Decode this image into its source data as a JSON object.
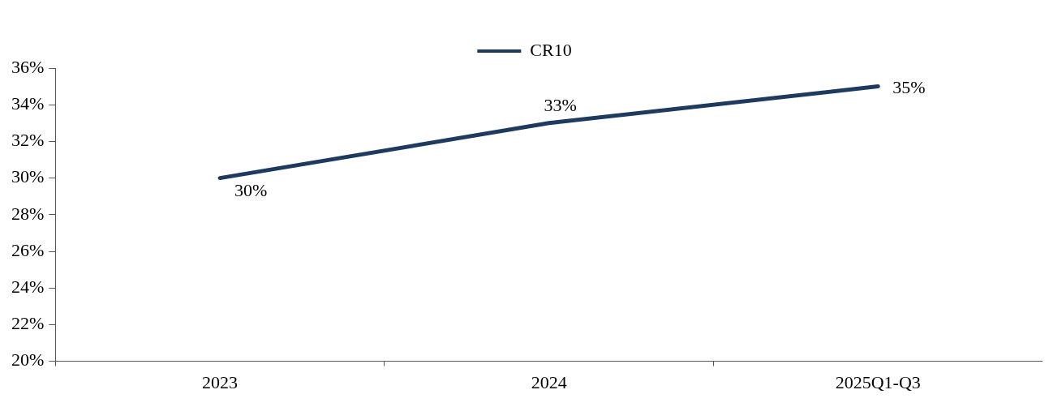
{
  "chart_data": {
    "type": "line",
    "categories": [
      "2023",
      "2024",
      "2025Q1-Q3"
    ],
    "series": [
      {
        "name": "CR10",
        "color": "#1f3a5f",
        "values": [
          30,
          33,
          35
        ],
        "value_labels": [
          "30%",
          "33%",
          "35%"
        ]
      }
    ],
    "ylim": [
      20,
      36
    ],
    "yticks": [
      {
        "value": 20,
        "label": "20%"
      },
      {
        "value": 22,
        "label": "22%"
      },
      {
        "value": 24,
        "label": "24%"
      },
      {
        "value": 26,
        "label": "26%"
      },
      {
        "value": 28,
        "label": "28%"
      },
      {
        "value": 30,
        "label": "30%"
      },
      {
        "value": 32,
        "label": "32%"
      },
      {
        "value": 34,
        "label": "34%"
      },
      {
        "value": 36,
        "label": "36%"
      }
    ],
    "grid": false,
    "legend": "top",
    "marker": "none",
    "line_style": "solid"
  }
}
